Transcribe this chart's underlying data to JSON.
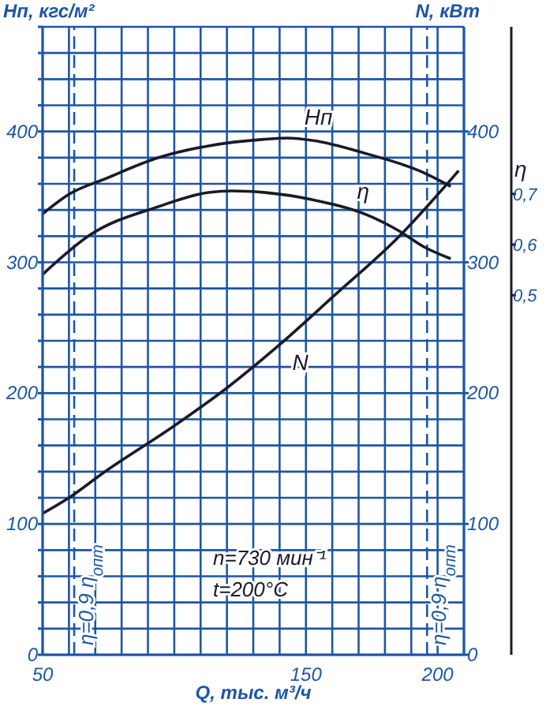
{
  "chart_data": {
    "type": "line",
    "xlabel": "Q, тыс. м³/ч",
    "ylabel": "Hп, кгс/м²",
    "y2label": "N, кВт",
    "y3label": "η",
    "xlim": [
      50,
      210
    ],
    "xticks": [
      50,
      {
        "value": 60,
        "label": null
      },
      {
        "value": 70,
        "label": null
      },
      {
        "value": 80,
        "label": null
      },
      {
        "value": 90,
        "label": null
      },
      {
        "value": 100,
        "label": null
      },
      {
        "value": 110,
        "label": null
      },
      {
        "value": 120,
        "label": null
      },
      {
        "value": 130,
        "label": null
      },
      {
        "value": 140,
        "label": null
      },
      150,
      {
        "value": 160,
        "label": null
      },
      {
        "value": 170,
        "label": null
      },
      {
        "value": 180,
        "label": null
      },
      {
        "value": 190,
        "label": null
      },
      200,
      {
        "value": 210,
        "label": null
      }
    ],
    "ylim": [
      0,
      480
    ],
    "yticks": [
      0,
      {
        "value": 20,
        "label": null
      },
      {
        "value": 40,
        "label": null
      },
      {
        "value": 60,
        "label": null
      },
      {
        "value": 80,
        "label": null
      },
      100,
      {
        "value": 120,
        "label": null
      },
      {
        "value": 140,
        "label": null
      },
      {
        "value": 160,
        "label": null
      },
      {
        "value": 180,
        "label": null
      },
      200,
      {
        "value": 220,
        "label": null
      },
      {
        "value": 240,
        "label": null
      },
      {
        "value": 260,
        "label": null
      },
      {
        "value": 280,
        "label": null
      },
      300,
      {
        "value": 320,
        "label": null
      },
      {
        "value": 340,
        "label": null
      },
      {
        "value": 360,
        "label": null
      },
      {
        "value": 380,
        "label": null
      },
      400,
      {
        "value": 420,
        "label": null
      },
      {
        "value": 440,
        "label": null
      },
      {
        "value": 460,
        "label": null
      },
      {
        "value": 480,
        "label": null
      }
    ],
    "y2lim": [
      0,
      480
    ],
    "y2ticks": [
      0,
      100,
      200,
      300,
      400
    ],
    "y3lim": [
      -0.21,
      1.03
    ],
    "y3ticks": [
      {
        "value": 0.5,
        "label": "0,5"
      },
      {
        "value": 0.6,
        "label": "0,6"
      },
      {
        "value": 0.7,
        "label": "0,7"
      }
    ],
    "grid": true,
    "legend": false,
    "marker": "none",
    "line_style": "solid",
    "series": [
      {
        "name": "Hп",
        "color": "#1a1a2a",
        "x": [
          50,
          60,
          74,
          94,
          113,
          134,
          143,
          153,
          173,
          193,
          205
        ],
        "values": [
          337,
          352,
          364,
          380,
          389,
          394,
          395,
          393,
          383,
          370,
          358
        ]
      },
      {
        "name": "η",
        "color": "#1a1a2a",
        "axis": "y3",
        "x": [
          50,
          68,
          94,
          113,
          122,
          134,
          153,
          173,
          185,
          195,
          205
        ],
        "values": [
          0.541,
          0.619,
          0.675,
          0.703,
          0.706,
          0.703,
          0.688,
          0.659,
          0.628,
          0.595,
          0.572
        ]
      },
      {
        "name": "N",
        "color": "#1a1a2a",
        "axis": "y2",
        "x": [
          50,
          60,
          73,
          100,
          120,
          140,
          161,
          185,
          208
        ],
        "values": [
          108,
          120,
          139,
          175,
          204,
          237,
          275,
          319,
          370
        ]
      }
    ],
    "ref_lines": [
      {
        "axis": "x",
        "value": 62,
        "line_style": "dashed"
      },
      {
        "axis": "x",
        "value": 196,
        "line_style": "dashed"
      }
    ],
    "annotations": [
      "n=730 мин⁻¹",
      "t=200°C",
      {
        "text": "η=0,9 η$_{опт}$",
        "x": 62
      },
      {
        "text": "η=0,9 η$_{опт}$",
        "x": 196
      }
    ]
  }
}
